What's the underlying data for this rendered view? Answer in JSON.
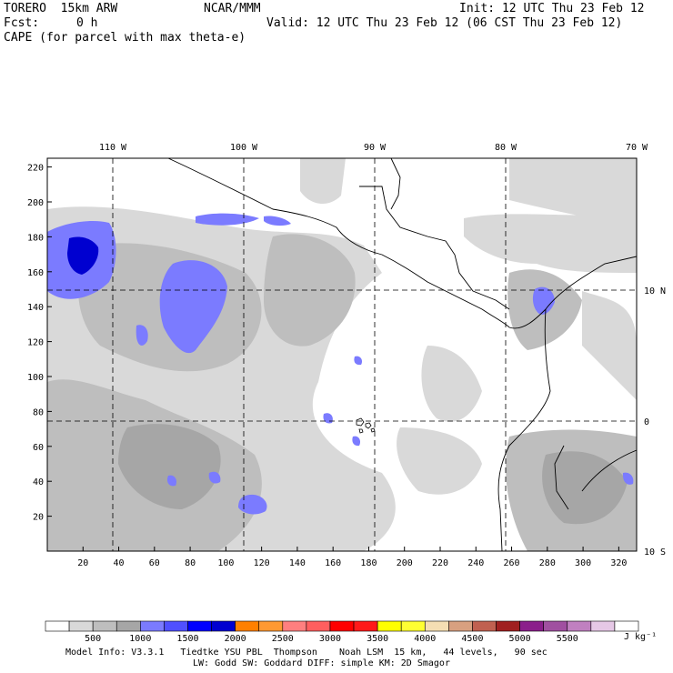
{
  "header": {
    "model_name": "TORERO  15km ARW",
    "org": "NCAR/MMM",
    "init": "Init: 12 UTC Thu 23 Feb 12",
    "fcst_label": "Fcst:",
    "fcst_value": "0 h",
    "valid": "Valid: 12 UTC Thu 23 Feb 12 (06 CST Thu 23 Feb 12)",
    "field": "CAPE (for parcel with max theta-e)"
  },
  "axes": {
    "x_ticks": [
      "20",
      "40",
      "60",
      "80",
      "100",
      "120",
      "140",
      "160",
      "180",
      "200",
      "220",
      "240",
      "260",
      "280",
      "300",
      "320"
    ],
    "y_ticks": [
      "20",
      "40",
      "60",
      "80",
      "100",
      "120",
      "140",
      "160",
      "180",
      "200",
      "220"
    ],
    "lon_labels": [
      "110 W",
      "100 W",
      "90 W",
      "80 W",
      "70 W"
    ],
    "lat_labels": [
      "10 N",
      "0",
      "10 S"
    ]
  },
  "colorbar": {
    "colors": [
      "#ffffff",
      "#d9d9d9",
      "#bebebe",
      "#a6a6a6",
      "#7b7bff",
      "#5050ff",
      "#0000ff",
      "#0000d0",
      "#ff8000",
      "#ff9933",
      "#ff7f7f",
      "#ff5f5f",
      "#ff0000",
      "#ff1a1a",
      "#ffff00",
      "#ffff33",
      "#f5deb3",
      "#d8a080",
      "#c06050",
      "#a02020",
      "#8b1f8b",
      "#a050a0",
      "#c080c0",
      "#e6c8e6",
      "#ffffff"
    ],
    "tick_labels": [
      "500",
      "1000",
      "1500",
      "2000",
      "2500",
      "3000",
      "3500",
      "4000",
      "4500",
      "5000",
      "5500"
    ],
    "units": "J kg⁻¹"
  },
  "footer": {
    "line1": "Model Info: V3.3.1   Tiedtke YSU PBL  Thompson    Noah LSM  15 km,   44 levels,   90 sec",
    "line2": "LW: Godd SW: Goddard DIFF: simple KM: 2D Smagor"
  }
}
